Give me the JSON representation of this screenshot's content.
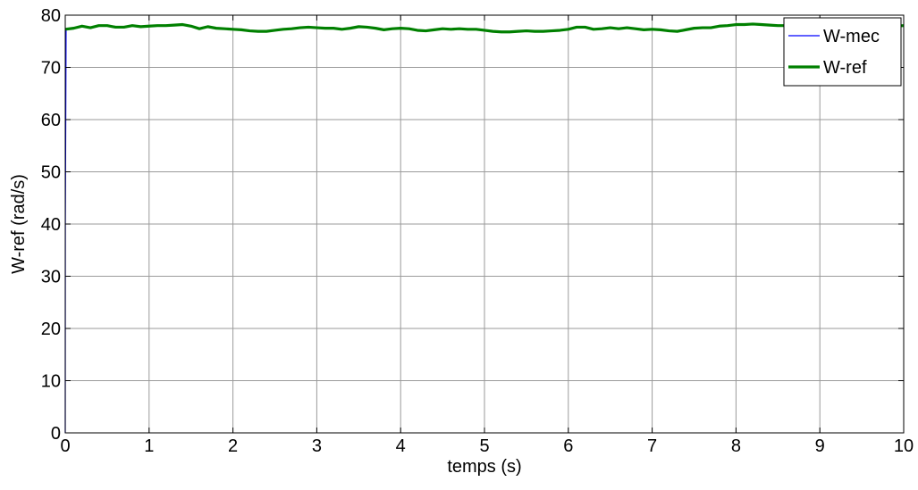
{
  "colors": {
    "background": "#ffffff",
    "grid": "#9a9a9a",
    "axes": "#000000",
    "w_mec": "#0000ff",
    "w_ref": "#008000"
  },
  "chart_data": {
    "type": "line",
    "title": "",
    "xlabel": "temps (s)",
    "ylabel": "W-ref (rad/s)",
    "xlim": [
      0,
      10
    ],
    "ylim": [
      0,
      80
    ],
    "xticks": [
      0,
      1,
      2,
      3,
      4,
      5,
      6,
      7,
      8,
      9,
      10
    ],
    "yticks": [
      0,
      10,
      20,
      30,
      40,
      50,
      60,
      70,
      80
    ],
    "grid": true,
    "legend_position": "top-right",
    "series": [
      {
        "name": "W-mec",
        "color": "#0000ff",
        "x": [
          0,
          0.001,
          0.01,
          0.05,
          0.1,
          0.2,
          0.3,
          0.4,
          0.5,
          0.6,
          0.7,
          0.8,
          0.9,
          1.0,
          1.1,
          1.2,
          1.3,
          1.4,
          1.5,
          1.6,
          1.7,
          1.8,
          1.9,
          2.0,
          2.1,
          2.2,
          2.3,
          2.4,
          2.5,
          2.6,
          2.7,
          2.8,
          2.9,
          3.0,
          3.1,
          3.2,
          3.3,
          3.4,
          3.5,
          3.6,
          3.7,
          3.8,
          3.9,
          4.0,
          4.1,
          4.2,
          4.3,
          4.4,
          4.5,
          4.6,
          4.7,
          4.8,
          4.9,
          5.0,
          5.1,
          5.2,
          5.3,
          5.4,
          5.5,
          5.6,
          5.7,
          5.8,
          5.9,
          6.0,
          6.1,
          6.2,
          6.3,
          6.4,
          6.5,
          6.6,
          6.7,
          6.8,
          6.9,
          7.0,
          7.1,
          7.2,
          7.3,
          7.4,
          7.5,
          7.6,
          7.7,
          7.8,
          7.9,
          8.0,
          8.1,
          8.2,
          8.3,
          8.4,
          8.5,
          8.6,
          8.7,
          8.8,
          8.9,
          9.0,
          9.1,
          9.2,
          9.3,
          9.4,
          9.5,
          9.6,
          9.7,
          9.8,
          9.9,
          10.0
        ],
        "y": [
          0,
          40,
          77.2,
          77.4,
          77.5,
          77.9,
          77.6,
          78.0,
          78.0,
          77.7,
          77.7,
          78.0,
          77.8,
          77.9,
          78.0,
          78.0,
          78.1,
          78.2,
          77.9,
          77.4,
          77.8,
          77.5,
          77.4,
          77.3,
          77.2,
          77.0,
          76.9,
          76.9,
          77.1,
          77.3,
          77.4,
          77.6,
          77.7,
          77.6,
          77.5,
          77.5,
          77.3,
          77.5,
          77.8,
          77.7,
          77.5,
          77.2,
          77.4,
          77.5,
          77.4,
          77.1,
          77.0,
          77.2,
          77.4,
          77.3,
          77.4,
          77.3,
          77.3,
          77.1,
          76.9,
          76.8,
          76.8,
          76.9,
          77.0,
          76.9,
          76.9,
          77.0,
          77.1,
          77.3,
          77.7,
          77.7,
          77.3,
          77.4,
          77.6,
          77.4,
          77.6,
          77.4,
          77.2,
          77.3,
          77.2,
          77.0,
          76.9,
          77.2,
          77.5,
          77.6,
          77.6,
          77.9,
          78.0,
          78.2,
          78.2,
          78.3,
          78.2,
          78.1,
          78.0,
          78.0,
          78.2,
          78.2,
          78.0,
          77.8,
          77.8,
          77.9,
          77.9,
          78.0,
          78.1,
          78.2,
          78.0,
          77.8,
          77.9,
          78.0
        ]
      },
      {
        "name": "W-ref",
        "color": "#008000",
        "x": [
          0,
          0.1,
          0.2,
          0.3,
          0.4,
          0.5,
          0.6,
          0.7,
          0.8,
          0.9,
          1.0,
          1.1,
          1.2,
          1.3,
          1.4,
          1.5,
          1.6,
          1.7,
          1.8,
          1.9,
          2.0,
          2.1,
          2.2,
          2.3,
          2.4,
          2.5,
          2.6,
          2.7,
          2.8,
          2.9,
          3.0,
          3.1,
          3.2,
          3.3,
          3.4,
          3.5,
          3.6,
          3.7,
          3.8,
          3.9,
          4.0,
          4.1,
          4.2,
          4.3,
          4.4,
          4.5,
          4.6,
          4.7,
          4.8,
          4.9,
          5.0,
          5.1,
          5.2,
          5.3,
          5.4,
          5.5,
          5.6,
          5.7,
          5.8,
          5.9,
          6.0,
          6.1,
          6.2,
          6.3,
          6.4,
          6.5,
          6.6,
          6.7,
          6.8,
          6.9,
          7.0,
          7.1,
          7.2,
          7.3,
          7.4,
          7.5,
          7.6,
          7.7,
          7.8,
          7.9,
          8.0,
          8.1,
          8.2,
          8.3,
          8.4,
          8.5,
          8.6,
          8.7,
          8.8,
          8.9,
          9.0,
          9.1,
          9.2,
          9.3,
          9.4,
          9.5,
          9.6,
          9.7,
          9.8,
          9.9,
          10.0
        ],
        "y": [
          77.3,
          77.5,
          77.9,
          77.6,
          78.0,
          78.0,
          77.7,
          77.7,
          78.0,
          77.8,
          77.9,
          78.0,
          78.0,
          78.1,
          78.2,
          77.9,
          77.4,
          77.8,
          77.5,
          77.4,
          77.3,
          77.2,
          77.0,
          76.9,
          76.9,
          77.1,
          77.3,
          77.4,
          77.6,
          77.7,
          77.6,
          77.5,
          77.5,
          77.3,
          77.5,
          77.8,
          77.7,
          77.5,
          77.2,
          77.4,
          77.5,
          77.4,
          77.1,
          77.0,
          77.2,
          77.4,
          77.3,
          77.4,
          77.3,
          77.3,
          77.1,
          76.9,
          76.8,
          76.8,
          76.9,
          77.0,
          76.9,
          76.9,
          77.0,
          77.1,
          77.3,
          77.7,
          77.7,
          77.3,
          77.4,
          77.6,
          77.4,
          77.6,
          77.4,
          77.2,
          77.3,
          77.2,
          77.0,
          76.9,
          77.2,
          77.5,
          77.6,
          77.6,
          77.9,
          78.0,
          78.2,
          78.2,
          78.3,
          78.2,
          78.1,
          78.0,
          78.0,
          78.2,
          78.2,
          78.0,
          77.8,
          77.8,
          77.9,
          77.9,
          78.0,
          78.1,
          78.2,
          78.0,
          77.8,
          77.9,
          78.0
        ]
      }
    ]
  }
}
